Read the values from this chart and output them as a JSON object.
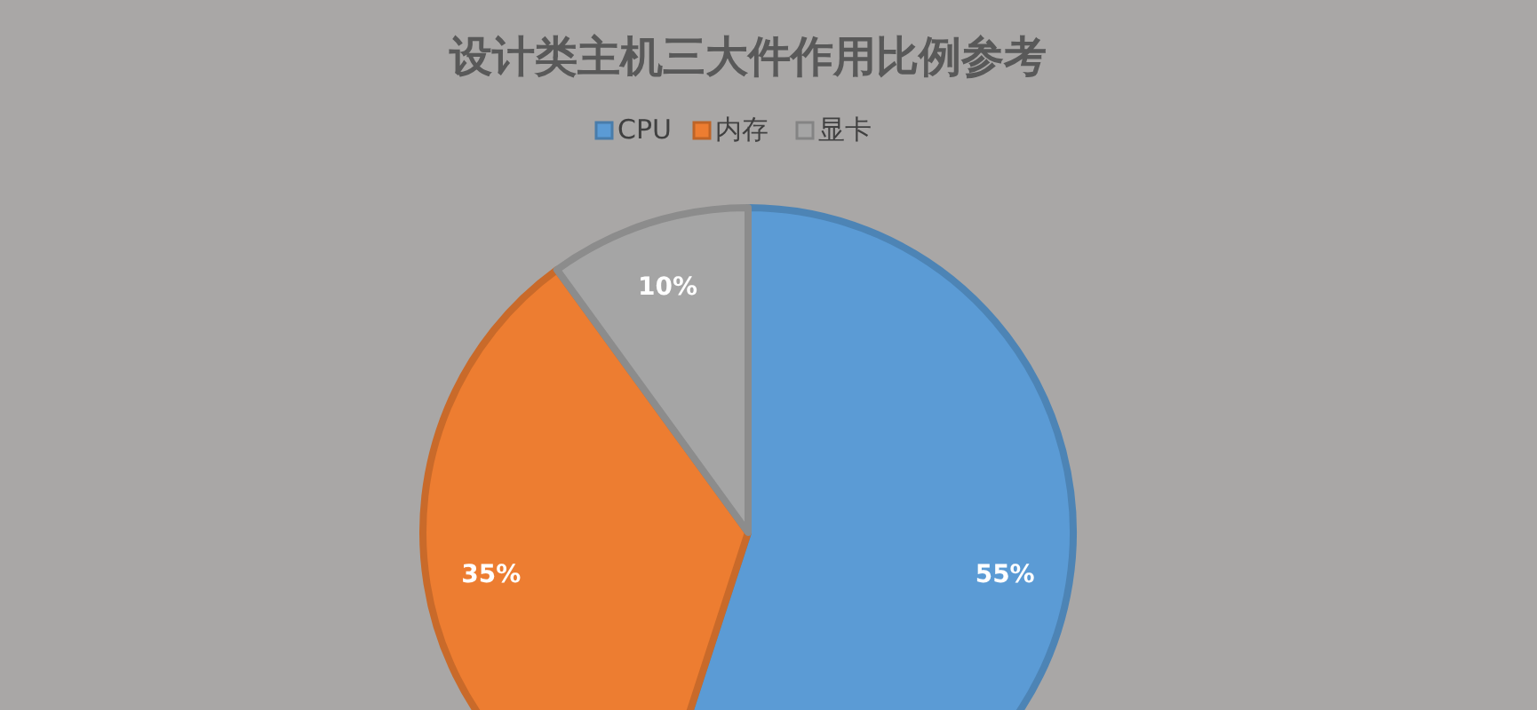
{
  "chart_data": {
    "type": "pie",
    "title": "设计类主机三大件作用比例参考",
    "categories": [
      "CPU",
      "内存",
      "显卡"
    ],
    "values": [
      55,
      35,
      10
    ],
    "colors": [
      "#5b9bd5",
      "#ed7d31",
      "#a5a5a5"
    ],
    "value_labels": [
      "55%",
      "35%",
      "10%"
    ],
    "legend": "top"
  }
}
